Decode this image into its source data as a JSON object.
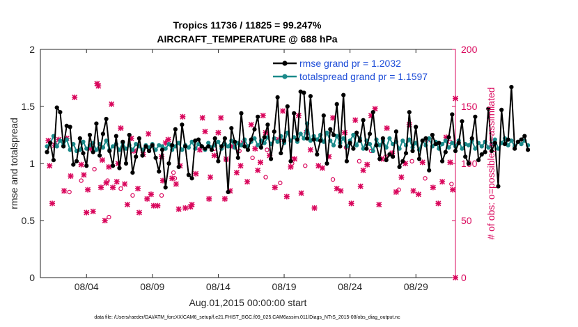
{
  "chart_data": {
    "type": "line",
    "title": "Tropics 11736 / 11825 = 99.247%",
    "subtitle": "AIRCRAFT_TEMPERATURE @ 688 hPa",
    "xlabel": "Aug.01,2015 00:00:00 start",
    "ylabel": "rmse and totalspread",
    "ylabel_right": "# of obs: o=possible; ×=assimilated",
    "ylim": [
      0,
      2
    ],
    "ylim_right": [
      0,
      200
    ],
    "xlim": [
      0.5,
      32.0
    ],
    "x_unit": "days since Jul.31,2015",
    "yticks": [
      "0",
      "0.5",
      "1",
      "1.5",
      "2"
    ],
    "yticks_right": [
      "0",
      "50",
      "100",
      "150",
      "200"
    ],
    "xticks": [
      {
        "x": 4,
        "label": "08/04"
      },
      {
        "x": 9,
        "label": "08/09"
      },
      {
        "x": 14,
        "label": "08/14"
      },
      {
        "x": 19,
        "label": "08/19"
      },
      {
        "x": 24,
        "label": "08/24"
      },
      {
        "x": 29,
        "label": "08/29"
      }
    ],
    "series": [
      {
        "name": "rmse grand pr = 1.2032",
        "color": "#000000",
        "x_start": 1.0,
        "x_step": 0.25,
        "values": [
          1.1,
          1.18,
          1.03,
          1.49,
          1.45,
          1.15,
          1.33,
          1.32,
          0.99,
          1.02,
          1.22,
          1.09,
          0.98,
          1.25,
          1.1,
          1.35,
          1.07,
          1.26,
          1.39,
          1.11,
          0.98,
          1.24,
          0.96,
          1.19,
          1.0,
          1.25,
          0.92,
          1.06,
          1.22,
          1.07,
          1.15,
          1.11,
          1.16,
          1.05,
          0.93,
          1.12,
          0.79,
          1.0,
          1.16,
          1.3,
          0.97,
          1.34,
          1.15,
          0.9,
          0.87,
          1.2,
          1.21,
          1.15,
          1.13,
          1.15,
          1.12,
          1.22,
          1.02,
          1.15,
          1.22,
          0.75,
          1.31,
          1.19,
          1.05,
          1.44,
          1.15,
          1.12,
          1.21,
          1.3,
          1.41,
          1.14,
          1.23,
          1.34,
          1.04,
          1.28,
          1.58,
          1.09,
          1.2,
          1.5,
          1.02,
          1.44,
          1.21,
          1.63,
          1.62,
          1.22,
          1.59,
          1.21,
          1.08,
          1.2,
          1.42,
          1.0,
          1.3,
          1.25,
          1.52,
          1.15,
          1.6,
          1.02,
          1.18,
          1.13,
          1.27,
          1.2,
          1.38,
          1.13,
          1.26,
          1.45,
          1.16,
          1.04,
          1.22,
          1.03,
          1.08,
          1.06,
          1.28,
          0.97,
          1.02,
          1.09,
          1.45,
          1.11,
          1.32,
          1.04,
          1.2,
          1.22,
          0.94,
          1.25,
          1.17,
          1.18,
          1.02,
          1.1,
          1.23,
          1.43,
          1.11,
          1.18,
          1.37,
          1.06,
          1.0,
          1.22,
          1.41,
          1.03,
          1.08,
          1.1,
          1.48,
          1.11,
          1.18,
          0.8,
          1.47,
          1.17,
          1.21,
          1.67,
          1.13,
          1.19,
          1.21,
          1.24,
          1.12
        ]
      },
      {
        "name": "totalspread grand pr = 1.1597",
        "color": "#1a8a8a",
        "x_start": 1.0,
        "x_step": 0.25,
        "values": [
          1.15,
          1.18,
          1.24,
          1.15,
          1.2,
          1.16,
          1.21,
          1.12,
          1.17,
          1.11,
          1.12,
          1.19,
          1.13,
          1.16,
          1.18,
          1.12,
          1.17,
          1.14,
          1.2,
          1.12,
          1.15,
          1.17,
          1.12,
          1.18,
          1.13,
          1.16,
          1.12,
          1.17,
          1.15,
          1.12,
          1.16,
          1.14,
          1.17,
          1.12,
          1.16,
          1.15,
          1.13,
          1.17,
          1.12,
          1.15,
          1.18,
          1.12,
          1.16,
          1.14,
          1.19,
          1.13,
          1.17,
          1.15,
          1.12,
          1.18,
          1.14,
          1.16,
          1.19,
          1.13,
          1.17,
          1.15,
          1.2,
          1.14,
          1.18,
          1.16,
          1.21,
          1.15,
          1.19,
          1.22,
          1.16,
          1.2,
          1.18,
          1.23,
          1.17,
          1.22,
          1.19,
          1.24,
          1.18,
          1.27,
          1.2,
          1.23,
          1.19,
          1.26,
          1.22,
          1.35,
          1.2,
          1.24,
          1.21,
          1.25,
          1.19,
          1.27,
          1.2,
          1.16,
          1.24,
          1.18,
          1.22,
          1.15,
          1.2,
          1.25,
          1.16,
          1.22,
          1.13,
          1.2,
          1.17,
          1.11,
          1.21,
          1.16,
          1.2,
          1.14,
          1.22,
          1.17,
          1.19,
          1.13,
          1.2,
          1.16,
          1.21,
          1.14,
          1.18,
          1.12,
          1.2,
          1.16,
          1.22,
          1.15,
          1.19,
          1.13,
          1.17,
          1.2,
          1.14,
          1.18,
          1.15,
          1.2,
          1.13,
          1.17,
          1.16,
          1.2,
          1.13,
          1.18,
          1.15,
          1.19,
          1.14,
          1.17,
          1.21,
          1.13,
          1.18,
          1.22,
          1.16,
          1.2,
          1.15,
          1.19,
          1.17,
          1.2,
          1.16
        ]
      },
      {
        "name": "# of obs possible",
        "marker": "o",
        "color": "#d9075c",
        "axis": "right",
        "points": [
          [
            2.7,
            75
          ],
          [
            3.6,
            85
          ],
          [
            4.6,
            95
          ],
          [
            5.6,
            85
          ],
          [
            5.7,
            53
          ],
          [
            6.6,
            78
          ],
          [
            7.5,
            72
          ],
          [
            9.7,
            72
          ],
          [
            10.6,
            92
          ],
          [
            10.7,
            87
          ],
          [
            13.7,
            113
          ],
          [
            14.6,
            103
          ],
          [
            15.6,
            111
          ],
          [
            16.6,
            105
          ],
          [
            17.7,
            112
          ],
          [
            17.6,
            88
          ],
          [
            18.7,
            83
          ],
          [
            19.7,
            104
          ],
          [
            19.6,
            100
          ],
          [
            20.6,
            98
          ],
          [
            22.7,
            86
          ],
          [
            23.7,
            114
          ],
          [
            24.7,
            102
          ],
          [
            25.6,
            111
          ],
          [
            26.7,
            106
          ],
          [
            27.7,
            77
          ],
          [
            28.7,
            102
          ],
          [
            29.7,
            87
          ],
          [
            31.7,
            82
          ],
          [
            31.6,
            119
          ]
        ]
      },
      {
        "name": "# of obs assimilated",
        "marker": "x",
        "color": "#d9075c",
        "axis": "right",
        "points": [
          [
            1.1,
            120
          ],
          [
            1.2,
            98
          ],
          [
            1.4,
            65
          ],
          [
            1.6,
            116
          ],
          [
            1.9,
            121
          ],
          [
            2.3,
            76
          ],
          [
            2.5,
            122
          ],
          [
            2.8,
            89
          ],
          [
            3.1,
            158
          ],
          [
            3.6,
            99
          ],
          [
            3.8,
            90
          ],
          [
            4.0,
            57
          ],
          [
            4.1,
            77
          ],
          [
            4.3,
            113
          ],
          [
            4.5,
            58
          ],
          [
            4.8,
            170
          ],
          [
            4.9,
            168
          ],
          [
            5.1,
            79
          ],
          [
            5.2,
            103
          ],
          [
            5.4,
            50
          ],
          [
            5.5,
            83
          ],
          [
            5.7,
            97
          ],
          [
            5.9,
            152
          ],
          [
            6.0,
            79
          ],
          [
            6.3,
            84
          ],
          [
            6.4,
            100
          ],
          [
            6.6,
            131
          ],
          [
            6.9,
            82
          ],
          [
            7.1,
            64
          ],
          [
            7.4,
            122
          ],
          [
            7.6,
            111
          ],
          [
            7.9,
            78
          ],
          [
            8.0,
            57
          ],
          [
            8.3,
            108
          ],
          [
            8.6,
            69
          ],
          [
            8.7,
            126
          ],
          [
            8.9,
            73
          ],
          [
            9.1,
            63
          ],
          [
            9.4,
            63
          ],
          [
            9.7,
            106
          ],
          [
            9.8,
            85
          ],
          [
            10.0,
            118
          ],
          [
            10.2,
            121
          ],
          [
            10.5,
            87
          ],
          [
            10.8,
            82
          ],
          [
            11.0,
            60
          ],
          [
            11.1,
            98
          ],
          [
            11.3,
            141
          ],
          [
            11.5,
            61
          ],
          [
            11.9,
            62
          ],
          [
            12.0,
            64
          ],
          [
            12.3,
            91
          ],
          [
            12.6,
            112
          ],
          [
            12.8,
            140
          ],
          [
            13.0,
            128
          ],
          [
            13.3,
            69
          ],
          [
            13.4,
            88
          ],
          [
            13.7,
            107
          ],
          [
            14.0,
            127
          ],
          [
            14.2,
            140
          ],
          [
            14.5,
            69
          ],
          [
            14.6,
            104
          ],
          [
            14.9,
            76
          ],
          [
            15.1,
            115
          ],
          [
            15.4,
            92
          ],
          [
            15.7,
            98
          ],
          [
            15.9,
            118
          ],
          [
            16.2,
            84
          ],
          [
            16.5,
            134
          ],
          [
            16.8,
            113
          ],
          [
            17.0,
            94
          ],
          [
            17.2,
            101
          ],
          [
            17.4,
            142
          ],
          [
            17.6,
            127
          ],
          [
            17.9,
            107
          ],
          [
            18.3,
            79
          ],
          [
            18.6,
            121
          ],
          [
            18.9,
            146
          ],
          [
            19.2,
            71
          ],
          [
            19.5,
            97
          ],
          [
            19.8,
            104
          ],
          [
            20.1,
            142
          ],
          [
            20.3,
            74
          ],
          [
            20.7,
            127
          ],
          [
            21.0,
            112
          ],
          [
            21.3,
            61
          ],
          [
            21.6,
            98
          ],
          [
            21.9,
            96
          ],
          [
            22.4,
            106
          ],
          [
            22.7,
            140
          ],
          [
            23.0,
            78
          ],
          [
            23.3,
            76
          ],
          [
            23.6,
            127
          ],
          [
            24.1,
            65
          ],
          [
            24.4,
            138
          ],
          [
            24.8,
            80
          ],
          [
            25.0,
            94
          ],
          [
            25.3,
            99
          ],
          [
            25.6,
            142
          ],
          [
            25.9,
            148
          ],
          [
            26.2,
            64
          ],
          [
            26.4,
            104
          ],
          [
            26.8,
            131
          ],
          [
            27.2,
            109
          ],
          [
            27.5,
            75
          ],
          [
            27.9,
            88
          ],
          [
            28.2,
            100
          ],
          [
            28.5,
            134
          ],
          [
            28.8,
            76
          ],
          [
            29.2,
            73
          ],
          [
            29.5,
            101
          ],
          [
            29.9,
            121
          ],
          [
            30.3,
            79
          ],
          [
            30.7,
            65
          ],
          [
            31.0,
            84
          ],
          [
            31.3,
            123
          ],
          [
            31.6,
            101
          ],
          [
            31.8,
            77
          ],
          [
            32.0,
            157
          ],
          [
            32.0,
            0
          ]
        ]
      }
    ],
    "legend_position": "top-right"
  },
  "footer": "data file: /Users/raeder/DAI/ATM_forcXX/CAM6_setup/f.e21.FHIST_BGC.f09_025.CAM6assim.011/Diags_NTrS_2015-08/obs_diag_output.nc"
}
